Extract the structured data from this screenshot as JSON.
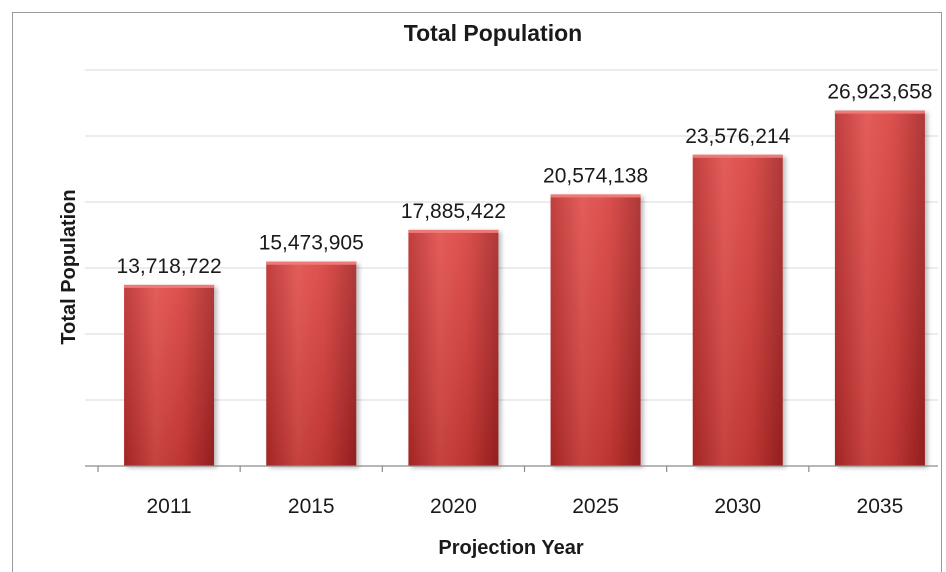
{
  "chart_data": {
    "type": "bar",
    "title": "Total Population",
    "xlabel": "Projection Year",
    "ylabel": "Total Population",
    "categories": [
      "2011",
      "2015",
      "2020",
      "2025",
      "2030",
      "2035"
    ],
    "values": [
      13718722,
      15473905,
      17885422,
      20574138,
      23576214,
      26923658
    ],
    "data_labels": [
      "13,718,722",
      "15,473,905",
      "17,885,422",
      "20,574,138",
      "23,576,214",
      "26,923,658"
    ],
    "ylim": [
      0,
      30000000
    ],
    "grid": true,
    "y_tick_labels_visible": false,
    "bar_color": "#c0302f",
    "bar_color_light": "#e05a57",
    "bar_color_dark": "#a82424"
  }
}
